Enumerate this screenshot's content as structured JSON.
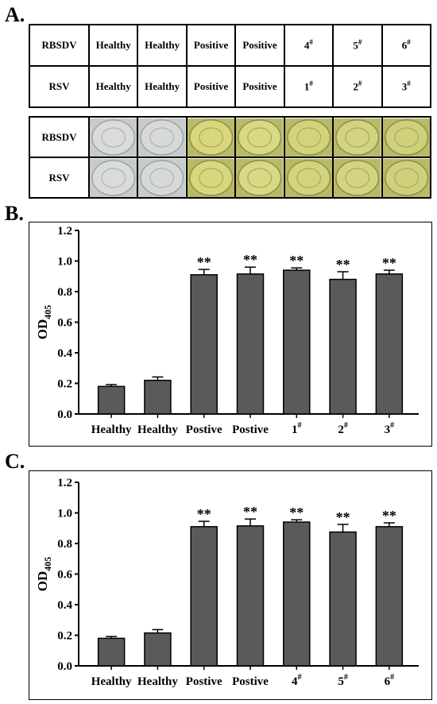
{
  "panel_a": {
    "letter": "A.",
    "rows": [
      {
        "label": "RBSDV",
        "cells": [
          "Healthy",
          "Healthy",
          "Positive",
          "Positive",
          "4",
          "5",
          "6"
        ]
      },
      {
        "label": "RSV",
        "cells": [
          "Healthy",
          "Healthy",
          "Positive",
          "Positive",
          "1",
          "2",
          "3"
        ]
      }
    ],
    "superscript": "#",
    "well_rows": [
      "RBSDV",
      "RSV"
    ],
    "well_colors": [
      "#d9dcdb",
      "#d6d9d8",
      "#d8d77d",
      "#d9d884",
      "#d3d37c",
      "#d3d482",
      "#cfd07c"
    ]
  },
  "panel_b": {
    "letter": "B."
  },
  "panel_c": {
    "letter": "C."
  },
  "chart_data": [
    {
      "type": "bar",
      "categories": [
        "Healthy",
        "Healthy",
        "Postive",
        "Postive",
        "1#",
        "2#",
        "3#"
      ],
      "values": [
        0.18,
        0.22,
        0.91,
        0.915,
        0.94,
        0.88,
        0.915
      ],
      "errors": [
        0.012,
        0.022,
        0.035,
        0.045,
        0.015,
        0.05,
        0.025
      ],
      "significance": [
        "",
        "",
        "**",
        "**",
        "**",
        "**",
        "**"
      ],
      "ylabel_main": "OD",
      "ylabel_sub": "405",
      "ylim": [
        0,
        1.2
      ],
      "yticks": [
        "0.0",
        "0.2",
        "0.4",
        "0.6",
        "0.8",
        "1.0",
        "1.2"
      ],
      "bar_color": "#5a5a5a",
      "grid": false
    },
    {
      "type": "bar",
      "categories": [
        "Healthy",
        "Healthy",
        "Postive",
        "Postive",
        "4#",
        "5#",
        "6#"
      ],
      "values": [
        0.18,
        0.215,
        0.91,
        0.915,
        0.94,
        0.875,
        0.91
      ],
      "errors": [
        0.012,
        0.022,
        0.035,
        0.045,
        0.015,
        0.05,
        0.025
      ],
      "significance": [
        "",
        "",
        "**",
        "**",
        "**",
        "**",
        "**"
      ],
      "ylabel_main": "OD",
      "ylabel_sub": "405",
      "ylim": [
        0,
        1.2
      ],
      "yticks": [
        "0.0",
        "0.2",
        "0.4",
        "0.6",
        "0.8",
        "1.0",
        "1.2"
      ],
      "bar_color": "#5a5a5a",
      "grid": false
    }
  ]
}
